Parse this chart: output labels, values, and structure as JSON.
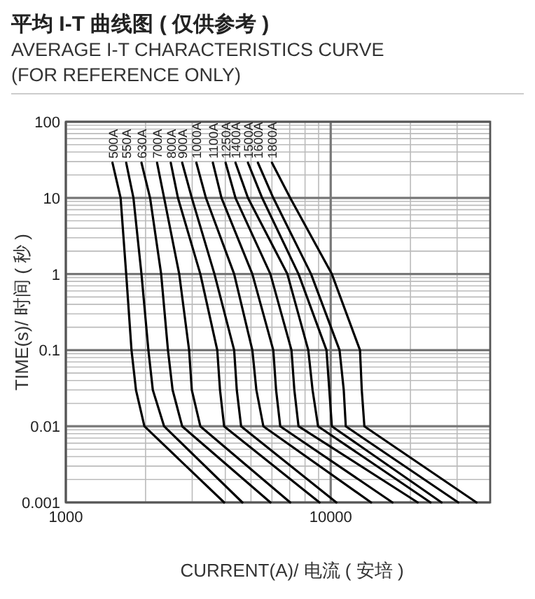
{
  "chart_data": {
    "type": "line",
    "title": "平均 I-T 曲线图 ( 仅供参考 )",
    "subtitle": "AVERAGE I-T CHARACTERISTICS CURVE (FOR REFERENCE ONLY)",
    "xlabel": "CURRENT(A)/ 电流 ( 安培 )",
    "ylabel": "TIME(s)/ 时间 ( 秒 )",
    "log": "xy",
    "grid": true,
    "marker": "none",
    "line_style": "solid",
    "xlim": [
      1000,
      40000
    ],
    "xticks": [
      1000,
      10000
    ],
    "ylim": [
      0.001,
      100
    ],
    "yticks": [
      0.001,
      0.01,
      0.1,
      1,
      10,
      100
    ],
    "series": [
      {
        "name": "500A",
        "color": "#000000",
        "x": [
          1500,
          1610,
          1690,
          1770,
          1840,
          1980,
          3960
        ],
        "values": [
          29,
          10,
          1,
          0.1,
          0.03,
          0.01,
          0.001
        ]
      },
      {
        "name": "550A",
        "color": "#000000",
        "x": [
          1690,
          1800,
          1930,
          2050,
          2130,
          2350,
          4640
        ],
        "values": [
          29,
          10,
          1,
          0.1,
          0.03,
          0.01,
          0.001
        ]
      },
      {
        "name": "630A",
        "color": "#000000",
        "x": [
          1930,
          2080,
          2290,
          2430,
          2530,
          2750,
          5920
        ],
        "values": [
          29,
          10,
          1,
          0.1,
          0.03,
          0.01,
          0.001
        ]
      },
      {
        "name": "700A",
        "color": "#000000",
        "x": [
          2210,
          2350,
          2680,
          2920,
          2990,
          3220,
          7030
        ],
        "values": [
          29,
          10,
          1,
          0.1,
          0.03,
          0.01,
          0.001
        ]
      },
      {
        "name": "800A",
        "color": "#000000",
        "x": [
          2490,
          2650,
          3220,
          3730,
          3820,
          3960,
          9070
        ],
        "values": [
          29,
          10,
          1,
          0.1,
          0.03,
          0.01,
          0.001
        ]
      },
      {
        "name": "900A",
        "color": "#000000",
        "x": [
          2750,
          2990,
          3640,
          4320,
          4420,
          4590,
          10500
        ],
        "values": [
          29,
          10,
          1,
          0.1,
          0.03,
          0.01,
          0.001
        ]
      },
      {
        "name": "1000A",
        "color": "#000000",
        "x": [
          3110,
          3380,
          4320,
          5060,
          5240,
          5570,
          14200
        ],
        "values": [
          29,
          10,
          1,
          0.1,
          0.03,
          0.01,
          0.001
        ]
      },
      {
        "name": "1100A",
        "color": "#000000",
        "x": [
          3590,
          3870,
          5060,
          6070,
          6220,
          6450,
          17100
        ],
        "values": [
          29,
          10,
          1,
          0.1,
          0.03,
          0.01,
          0.001
        ]
      },
      {
        "name": "1250A",
        "color": "#000000",
        "x": [
          4010,
          4370,
          5920,
          7110,
          7290,
          7560,
          21300
        ],
        "values": [
          29,
          10,
          1,
          0.1,
          0.03,
          0.01,
          0.001
        ]
      },
      {
        "name": "1400A",
        "color": "#000000",
        "x": [
          4370,
          4870,
          6860,
          8230,
          8540,
          8960,
          23800
        ],
        "values": [
          29,
          10,
          1,
          0.1,
          0.03,
          0.01,
          0.001
        ]
      },
      {
        "name": "1500A",
        "color": "#000000",
        "x": [
          4870,
          5510,
          7560,
          9640,
          9880,
          10100,
          26200
        ],
        "values": [
          29,
          10,
          1,
          0.1,
          0.03,
          0.01,
          0.001
        ]
      },
      {
        "name": "1600A",
        "color": "#000000",
        "x": [
          5310,
          6070,
          8430,
          10800,
          11200,
          11400,
          30300
        ],
        "values": [
          29,
          10,
          1,
          0.1,
          0.03,
          0.01,
          0.001
        ]
      },
      {
        "name": "1800A",
        "color": "#000000",
        "x": [
          6000,
          7030,
          10100,
          12900,
          13100,
          13400,
          35500
        ],
        "values": [
          29,
          10,
          1,
          0.1,
          0.03,
          0.01,
          0.001
        ]
      }
    ]
  }
}
